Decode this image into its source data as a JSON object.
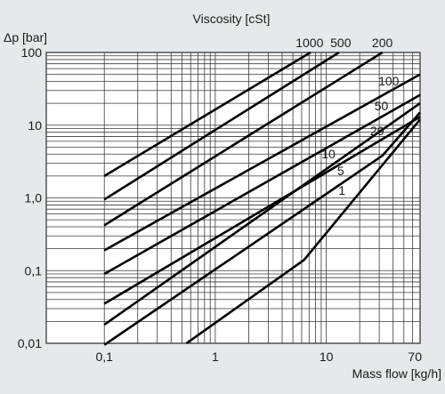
{
  "chart_data": {
    "type": "line",
    "title": "Viscosity [cSt]",
    "xlabel": "Mass flow [kg/h]",
    "ylabel": "Δp [bar]",
    "x_scale": "log",
    "y_scale": "log",
    "xlim": [
      0.03,
      70
    ],
    "ylim": [
      0.01,
      100
    ],
    "grid": true,
    "x_ticks": [
      {
        "value": 0.1,
        "label": "0,1"
      },
      {
        "value": 1,
        "label": "1"
      },
      {
        "value": 10,
        "label": "10"
      },
      {
        "value": 70,
        "label": "70"
      }
    ],
    "y_ticks": [
      {
        "value": 0.01,
        "label": "0,01"
      },
      {
        "value": 0.1,
        "label": "0,1"
      },
      {
        "value": 1,
        "label": "1,0"
      },
      {
        "value": 10,
        "label": "10"
      },
      {
        "value": 100,
        "label": "100"
      }
    ],
    "series": [
      {
        "name": "1000",
        "points": [
          [
            0.1,
            2.0
          ],
          [
            7.2,
            100
          ]
        ]
      },
      {
        "name": "500",
        "points": [
          [
            0.1,
            0.95
          ],
          [
            13.0,
            100
          ]
        ]
      },
      {
        "name": "200",
        "points": [
          [
            0.1,
            0.42
          ],
          [
            32.0,
            100
          ]
        ]
      },
      {
        "name": "100",
        "points": [
          [
            0.1,
            0.19
          ],
          [
            70,
            50
          ]
        ]
      },
      {
        "name": "50",
        "points": [
          [
            0.1,
            0.09
          ],
          [
            70,
            26
          ]
        ]
      },
      {
        "name": "20",
        "points": [
          [
            0.1,
            0.035
          ],
          [
            70,
            13
          ]
        ]
      },
      {
        "name": "10",
        "points": [
          [
            0.1,
            0.018
          ],
          [
            70,
            20
          ]
        ]
      },
      {
        "name": "5",
        "points": [
          [
            0.1,
            0.0095
          ],
          [
            32,
            3.8
          ],
          [
            70,
            15
          ]
        ]
      },
      {
        "name": "1",
        "points": [
          [
            0.55,
            0.01
          ],
          [
            6.3,
            0.14
          ],
          [
            70,
            12
          ]
        ]
      }
    ]
  }
}
